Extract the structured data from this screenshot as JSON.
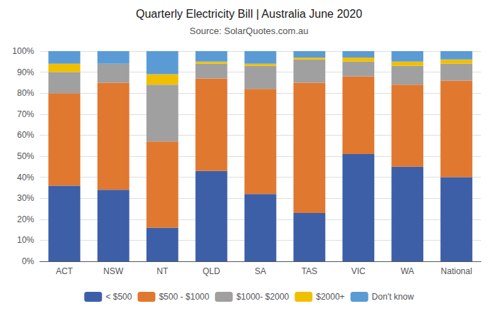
{
  "chart_data": {
    "type": "bar",
    "title": "Quarterly Electricity Bill | Australia June 2020",
    "subtitle": "Source: SolarQuotes.com.au",
    "categories": [
      "ACT",
      "NSW",
      "NT",
      "QLD",
      "SA",
      "TAS",
      "VIC",
      "WA",
      "National"
    ],
    "series": [
      {
        "name": "< $500",
        "color": "#3d5fa8",
        "values": [
          36,
          34,
          16,
          43,
          32,
          23,
          51,
          45,
          40
        ]
      },
      {
        "name": "$500 - $1000",
        "color": "#e07830",
        "values": [
          44,
          51,
          41,
          44,
          50,
          62,
          37,
          39,
          46
        ]
      },
      {
        "name": "$1000- $2000",
        "color": "#a0a0a0",
        "values": [
          10,
          9,
          27,
          7,
          11,
          11,
          7,
          9,
          8
        ]
      },
      {
        "name": "$2000+",
        "color": "#f0c000",
        "values": [
          4,
          0,
          5,
          1,
          1,
          1,
          2,
          2,
          2
        ]
      },
      {
        "name": "Don't know",
        "color": "#5b9bd5",
        "values": [
          6,
          6,
          11,
          5,
          6,
          3,
          3,
          5,
          4
        ]
      }
    ],
    "ylim": [
      0,
      100
    ],
    "yticks": [
      {
        "value": 0,
        "label": "0%"
      },
      {
        "value": 10,
        "label": "10%"
      },
      {
        "value": 20,
        "label": "20%"
      },
      {
        "value": 30,
        "label": "30%"
      },
      {
        "value": 40,
        "label": "40%"
      },
      {
        "value": 50,
        "label": "50%"
      },
      {
        "value": 60,
        "label": "60%"
      },
      {
        "value": 70,
        "label": "70%"
      },
      {
        "value": 80,
        "label": "80%"
      },
      {
        "value": 90,
        "label": "90%"
      },
      {
        "value": 100,
        "label": "100%"
      }
    ],
    "stacked": true,
    "grid": true,
    "legend": "bottom"
  }
}
